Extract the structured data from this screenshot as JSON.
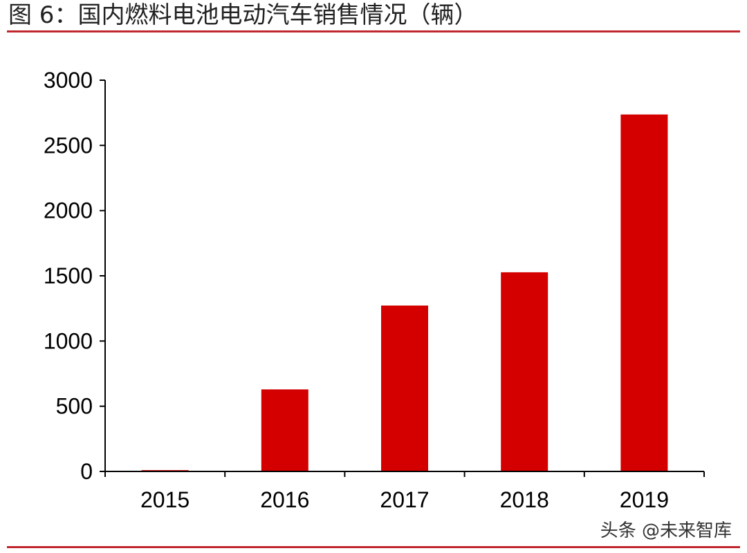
{
  "header": {
    "title": "图 6：国内燃料电池电动汽车销售情况（辆）"
  },
  "colors": {
    "accent": "#d40000",
    "rule": "#c0272d",
    "axis": "#000000"
  },
  "chart_data": {
    "type": "bar",
    "title": "图 6：国内燃料电池电动汽车销售情况（辆）",
    "xlabel": "",
    "ylabel": "",
    "categories": [
      "2015",
      "2016",
      "2017",
      "2018",
      "2019"
    ],
    "values": [
      10,
      629,
      1272,
      1527,
      2737
    ],
    "ylim": [
      0,
      3000
    ],
    "yticks": [
      "0",
      "500",
      "1000",
      "1500",
      "2000",
      "2500",
      "3000"
    ],
    "grid": false,
    "legend": "none"
  },
  "watermark": {
    "text": "头条 @未来智库"
  }
}
